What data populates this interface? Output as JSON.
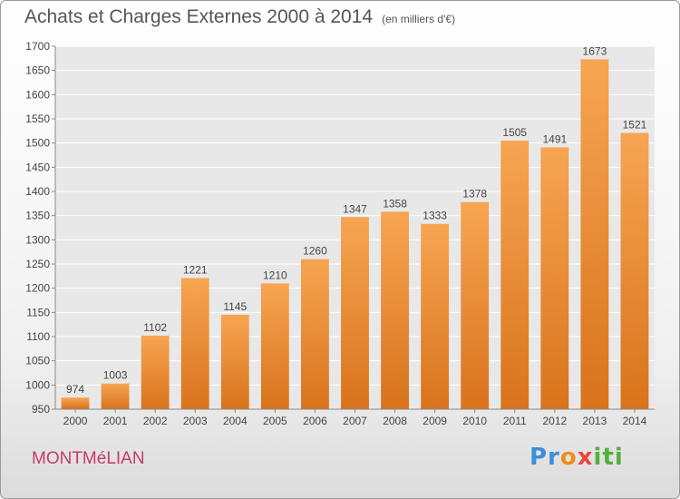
{
  "chart_data": {
    "type": "bar",
    "title": "Achats et Charges Externes 2000 à 2014",
    "subtitle": "(en milliers d'€)",
    "xlabel": "",
    "ylabel": "",
    "categories": [
      "2000",
      "2001",
      "2002",
      "2003",
      "2004",
      "2005",
      "2006",
      "2007",
      "2008",
      "2009",
      "2010",
      "2011",
      "2012",
      "2013",
      "2014"
    ],
    "values": [
      974,
      1003,
      1102,
      1221,
      1145,
      1210,
      1260,
      1347,
      1358,
      1333,
      1378,
      1505,
      1491,
      1673,
      1521
    ],
    "ylim": [
      950,
      1700
    ],
    "yticks": [
      950,
      1000,
      1050,
      1100,
      1150,
      1200,
      1250,
      1300,
      1350,
      1400,
      1450,
      1500,
      1550,
      1600,
      1650,
      1700
    ],
    "grid": true,
    "legend": "none",
    "bar_color": "#f08c30",
    "bar_color_dark": "#d9731c"
  },
  "footer": {
    "commune": "MONTMéLIAN",
    "logo_text": "Proxiti"
  }
}
